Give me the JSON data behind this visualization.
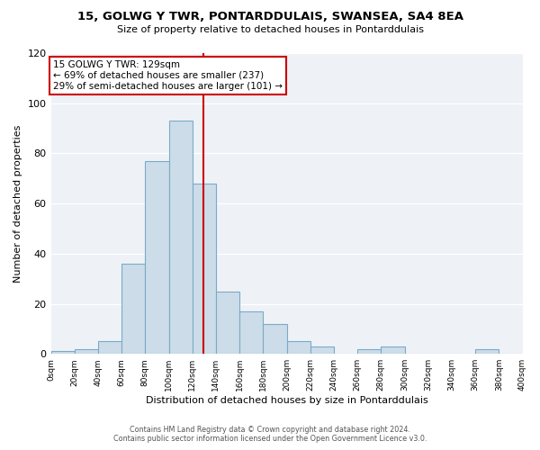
{
  "title": "15, GOLWG Y TWR, PONTARDDULAIS, SWANSEA, SA4 8EA",
  "subtitle": "Size of property relative to detached houses in Pontarddulais",
  "xlabel": "Distribution of detached houses by size in Pontarddulais",
  "ylabel": "Number of detached properties",
  "bar_color": "#ccdce8",
  "bar_edge_color": "#7baac8",
  "vline_x": 129,
  "vline_color": "#cc0000",
  "annotation_line1": "15 GOLWG Y TWR: 129sqm",
  "annotation_line2": "← 69% of detached houses are smaller (237)",
  "annotation_line3": "29% of semi-detached houses are larger (101) →",
  "annotation_box_color": "#ffffff",
  "annotation_box_edge": "#cc0000",
  "bin_edges": [
    0,
    20,
    40,
    60,
    80,
    100,
    120,
    140,
    160,
    180,
    200,
    220,
    240,
    260,
    280,
    300,
    320,
    340,
    360,
    380,
    400
  ],
  "bin_counts": [
    1,
    2,
    5,
    36,
    77,
    93,
    68,
    25,
    17,
    12,
    5,
    3,
    0,
    2,
    3,
    0,
    0,
    0,
    2,
    0
  ],
  "ylim": [
    0,
    120
  ],
  "xlim": [
    0,
    400
  ],
  "yticks": [
    0,
    20,
    40,
    60,
    80,
    100,
    120
  ],
  "footer_line1": "Contains HM Land Registry data © Crown copyright and database right 2024.",
  "footer_line2": "Contains public sector information licensed under the Open Government Licence v3.0.",
  "background_color": "#eef2f7"
}
